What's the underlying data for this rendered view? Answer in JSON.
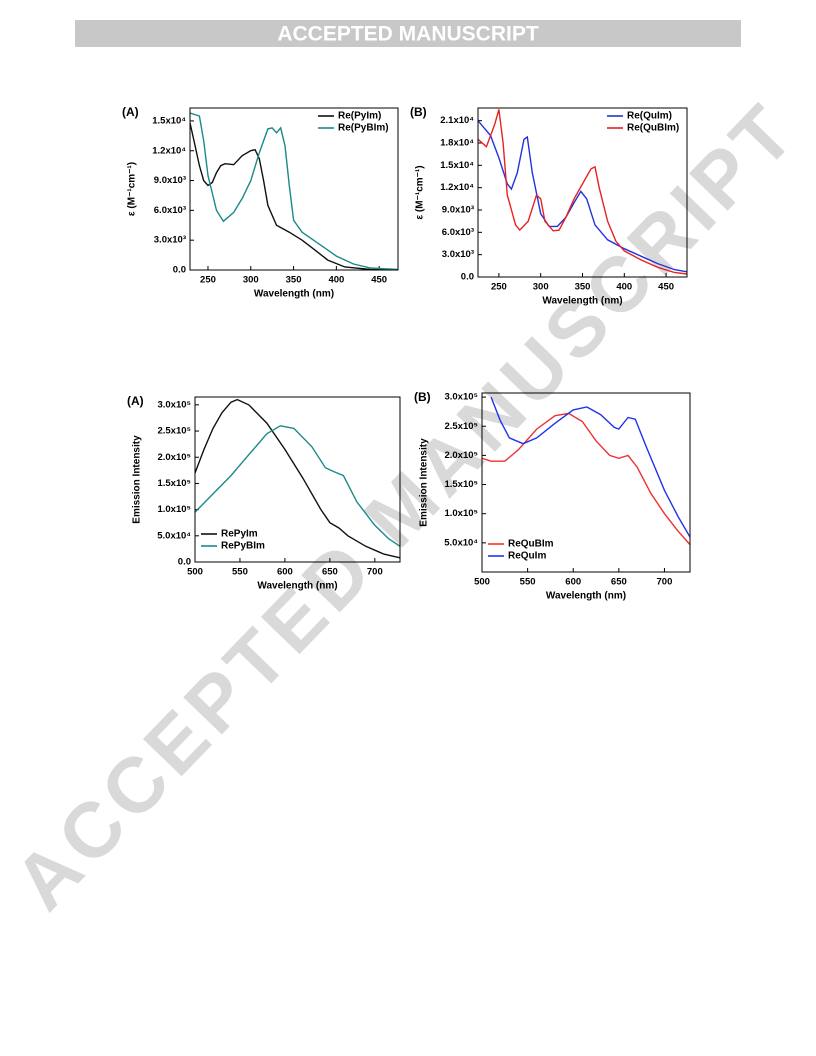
{
  "header": {
    "title": "ACCEPTED MANUSCRIPT"
  },
  "watermark": "ACCEPTED MANUSCRIPT",
  "chart_data": [
    {
      "type": "line",
      "panel_label": "(A)",
      "x_label": "Wavelength (nm)",
      "y_label": "ε (M⁻¹cm⁻¹)",
      "legend": "upper right",
      "xlim": [
        229,
        472
      ],
      "xticks": [
        250,
        300,
        350,
        400,
        450
      ],
      "ylim": [
        0,
        16300
      ],
      "yticks": [
        {
          "value": 0,
          "label": "0.0"
        },
        {
          "value": 3000,
          "label": "3.0x10³"
        },
        {
          "value": 6000,
          "label": "6.0x10³"
        },
        {
          "value": 9000,
          "label": "9.0x10³"
        },
        {
          "value": 12000,
          "label": "1.2x10⁴"
        },
        {
          "value": 15000,
          "label": "1.5x10⁴"
        }
      ],
      "series": [
        {
          "name": "Re(PyIm)",
          "color": "#111111",
          "x": [
            229,
            235,
            240,
            245,
            250,
            255,
            260,
            265,
            270,
            280,
            290,
            300,
            305,
            310,
            315,
            320,
            330,
            345,
            360,
            375,
            390,
            410,
            440,
            472
          ],
          "values": [
            14800,
            12500,
            10500,
            9000,
            8500,
            8800,
            9800,
            10500,
            10700,
            10600,
            11500,
            12000,
            12100,
            11200,
            9000,
            6500,
            4500,
            3800,
            3000,
            2000,
            1000,
            300,
            50,
            0
          ]
        },
        {
          "name": "Re(PyBIm)",
          "color": "#1a8a8a",
          "x": [
            229,
            240,
            245,
            250,
            260,
            268,
            280,
            290,
            300,
            310,
            320,
            325,
            330,
            335,
            340,
            345,
            350,
            360,
            370,
            380,
            390,
            400,
            420,
            440,
            472
          ],
          "values": [
            15800,
            15500,
            13000,
            9500,
            6000,
            4900,
            5800,
            7200,
            9000,
            11800,
            14200,
            14300,
            13800,
            14300,
            12500,
            8500,
            5000,
            3800,
            3200,
            2600,
            2000,
            1400,
            600,
            200,
            50
          ]
        }
      ]
    },
    {
      "type": "line",
      "panel_label": "(B)",
      "x_label": "Wavelength (nm)",
      "y_label": "ε (M⁻¹cm⁻¹)",
      "legend": "upper right",
      "xlim": [
        225,
        475
      ],
      "xticks": [
        250,
        300,
        350,
        400,
        450
      ],
      "ylim": [
        0,
        22700
      ],
      "yticks": [
        {
          "value": 0,
          "label": "0.0"
        },
        {
          "value": 3000,
          "label": "3.0x10³"
        },
        {
          "value": 6000,
          "label": "6.0x10³"
        },
        {
          "value": 9000,
          "label": "9.0x10³"
        },
        {
          "value": 12000,
          "label": "1.2x10⁴"
        },
        {
          "value": 15000,
          "label": "1.5x10⁴"
        },
        {
          "value": 18000,
          "label": "1.8x10⁴"
        },
        {
          "value": 21000,
          "label": "2.1x10⁴"
        }
      ],
      "series": [
        {
          "name": "Re(QuIm)",
          "color": "#2233dd",
          "x": [
            225,
            240,
            250,
            260,
            265,
            272,
            280,
            284,
            290,
            300,
            310,
            320,
            330,
            340,
            348,
            355,
            365,
            380,
            400,
            420,
            440,
            460,
            475
          ],
          "values": [
            21000,
            19000,
            16000,
            12500,
            11800,
            14000,
            18500,
            18800,
            14000,
            8500,
            6800,
            6800,
            8000,
            10000,
            11500,
            10500,
            7000,
            5000,
            3800,
            2800,
            1800,
            1000,
            700
          ]
        },
        {
          "name": "Re(QuBIm)",
          "color": "#e82222",
          "x": [
            225,
            235,
            245,
            250,
            255,
            260,
            270,
            275,
            285,
            295,
            300,
            305,
            315,
            322,
            330,
            340,
            350,
            360,
            365,
            370,
            380,
            390,
            400,
            420,
            440,
            460,
            475
          ],
          "values": [
            18500,
            17500,
            20500,
            22500,
            18000,
            11000,
            7000,
            6300,
            7500,
            11000,
            10500,
            7500,
            6200,
            6300,
            8000,
            10500,
            12500,
            14500,
            14800,
            12000,
            7500,
            4800,
            3500,
            2300,
            1300,
            600,
            400
          ]
        }
      ]
    },
    {
      "type": "line",
      "panel_label": "(A)",
      "x_label": "Wavelength (nm)",
      "y_label": "Emission Intensity",
      "legend": "lower left",
      "xlim": [
        500,
        728
      ],
      "xticks": [
        500,
        550,
        600,
        650,
        700
      ],
      "ylim": [
        0,
        315000
      ],
      "yticks": [
        {
          "value": 0,
          "label": "0.0"
        },
        {
          "value": 50000,
          "label": "5.0x10⁴"
        },
        {
          "value": 100000,
          "label": "1.0x10⁵"
        },
        {
          "value": 150000,
          "label": "1.5x10⁵"
        },
        {
          "value": 200000,
          "label": "2.0x10⁵"
        },
        {
          "value": 250000,
          "label": "2.5x10⁵"
        },
        {
          "value": 300000,
          "label": "3.0x10⁵"
        }
      ],
      "series": [
        {
          "name": "RePyIm",
          "color": "#111111",
          "x": [
            500,
            510,
            520,
            530,
            540,
            547,
            560,
            580,
            600,
            620,
            640,
            650,
            660,
            670,
            690,
            710,
            728
          ],
          "values": [
            170000,
            215000,
            255000,
            285000,
            305000,
            310000,
            300000,
            265000,
            215000,
            160000,
            100000,
            75000,
            65000,
            50000,
            30000,
            15000,
            8000
          ]
        },
        {
          "name": "RePyBIm",
          "color": "#1a8a8a",
          "x": [
            500,
            520,
            540,
            560,
            580,
            595,
            610,
            630,
            645,
            655,
            665,
            680,
            700,
            715,
            728
          ],
          "values": [
            95000,
            130000,
            165000,
            205000,
            245000,
            260000,
            255000,
            220000,
            180000,
            172000,
            165000,
            115000,
            70000,
            45000,
            30000
          ]
        }
      ]
    },
    {
      "type": "line",
      "panel_label": "(B)",
      "x_label": "Wavelength (nm)",
      "y_label": "Emission Intensity",
      "legend": "lower left",
      "xlim": [
        500,
        728
      ],
      "xticks": [
        500,
        550,
        600,
        650,
        700
      ],
      "ylim": [
        0,
        307000
      ],
      "yticks": [
        {
          "value": 50000,
          "label": "5.0x10⁴"
        },
        {
          "value": 100000,
          "label": "1.0x10⁵"
        },
        {
          "value": 150000,
          "label": "1.5x10⁵"
        },
        {
          "value": 200000,
          "label": "2.0x10⁵"
        },
        {
          "value": 250000,
          "label": "2.5x10⁵"
        },
        {
          "value": 300000,
          "label": "3.0x10⁵"
        }
      ],
      "series": [
        {
          "name": "ReQuBIm",
          "color": "#f03030",
          "x": [
            500,
            510,
            525,
            540,
            560,
            580,
            595,
            610,
            625,
            640,
            650,
            660,
            670,
            685,
            700,
            715,
            728
          ],
          "values": [
            195000,
            190000,
            190000,
            210000,
            245000,
            268000,
            272000,
            258000,
            225000,
            200000,
            195000,
            200000,
            180000,
            135000,
            100000,
            70000,
            47000
          ]
        },
        {
          "name": "ReQuIm",
          "color": "#2233ee",
          "x": [
            510,
            520,
            530,
            545,
            560,
            580,
            600,
            615,
            630,
            645,
            650,
            660,
            668,
            680,
            700,
            715,
            728
          ],
          "values": [
            300000,
            260000,
            230000,
            220000,
            230000,
            255000,
            278000,
            283000,
            270000,
            248000,
            245000,
            265000,
            262000,
            215000,
            140000,
            95000,
            60000
          ]
        }
      ]
    }
  ]
}
